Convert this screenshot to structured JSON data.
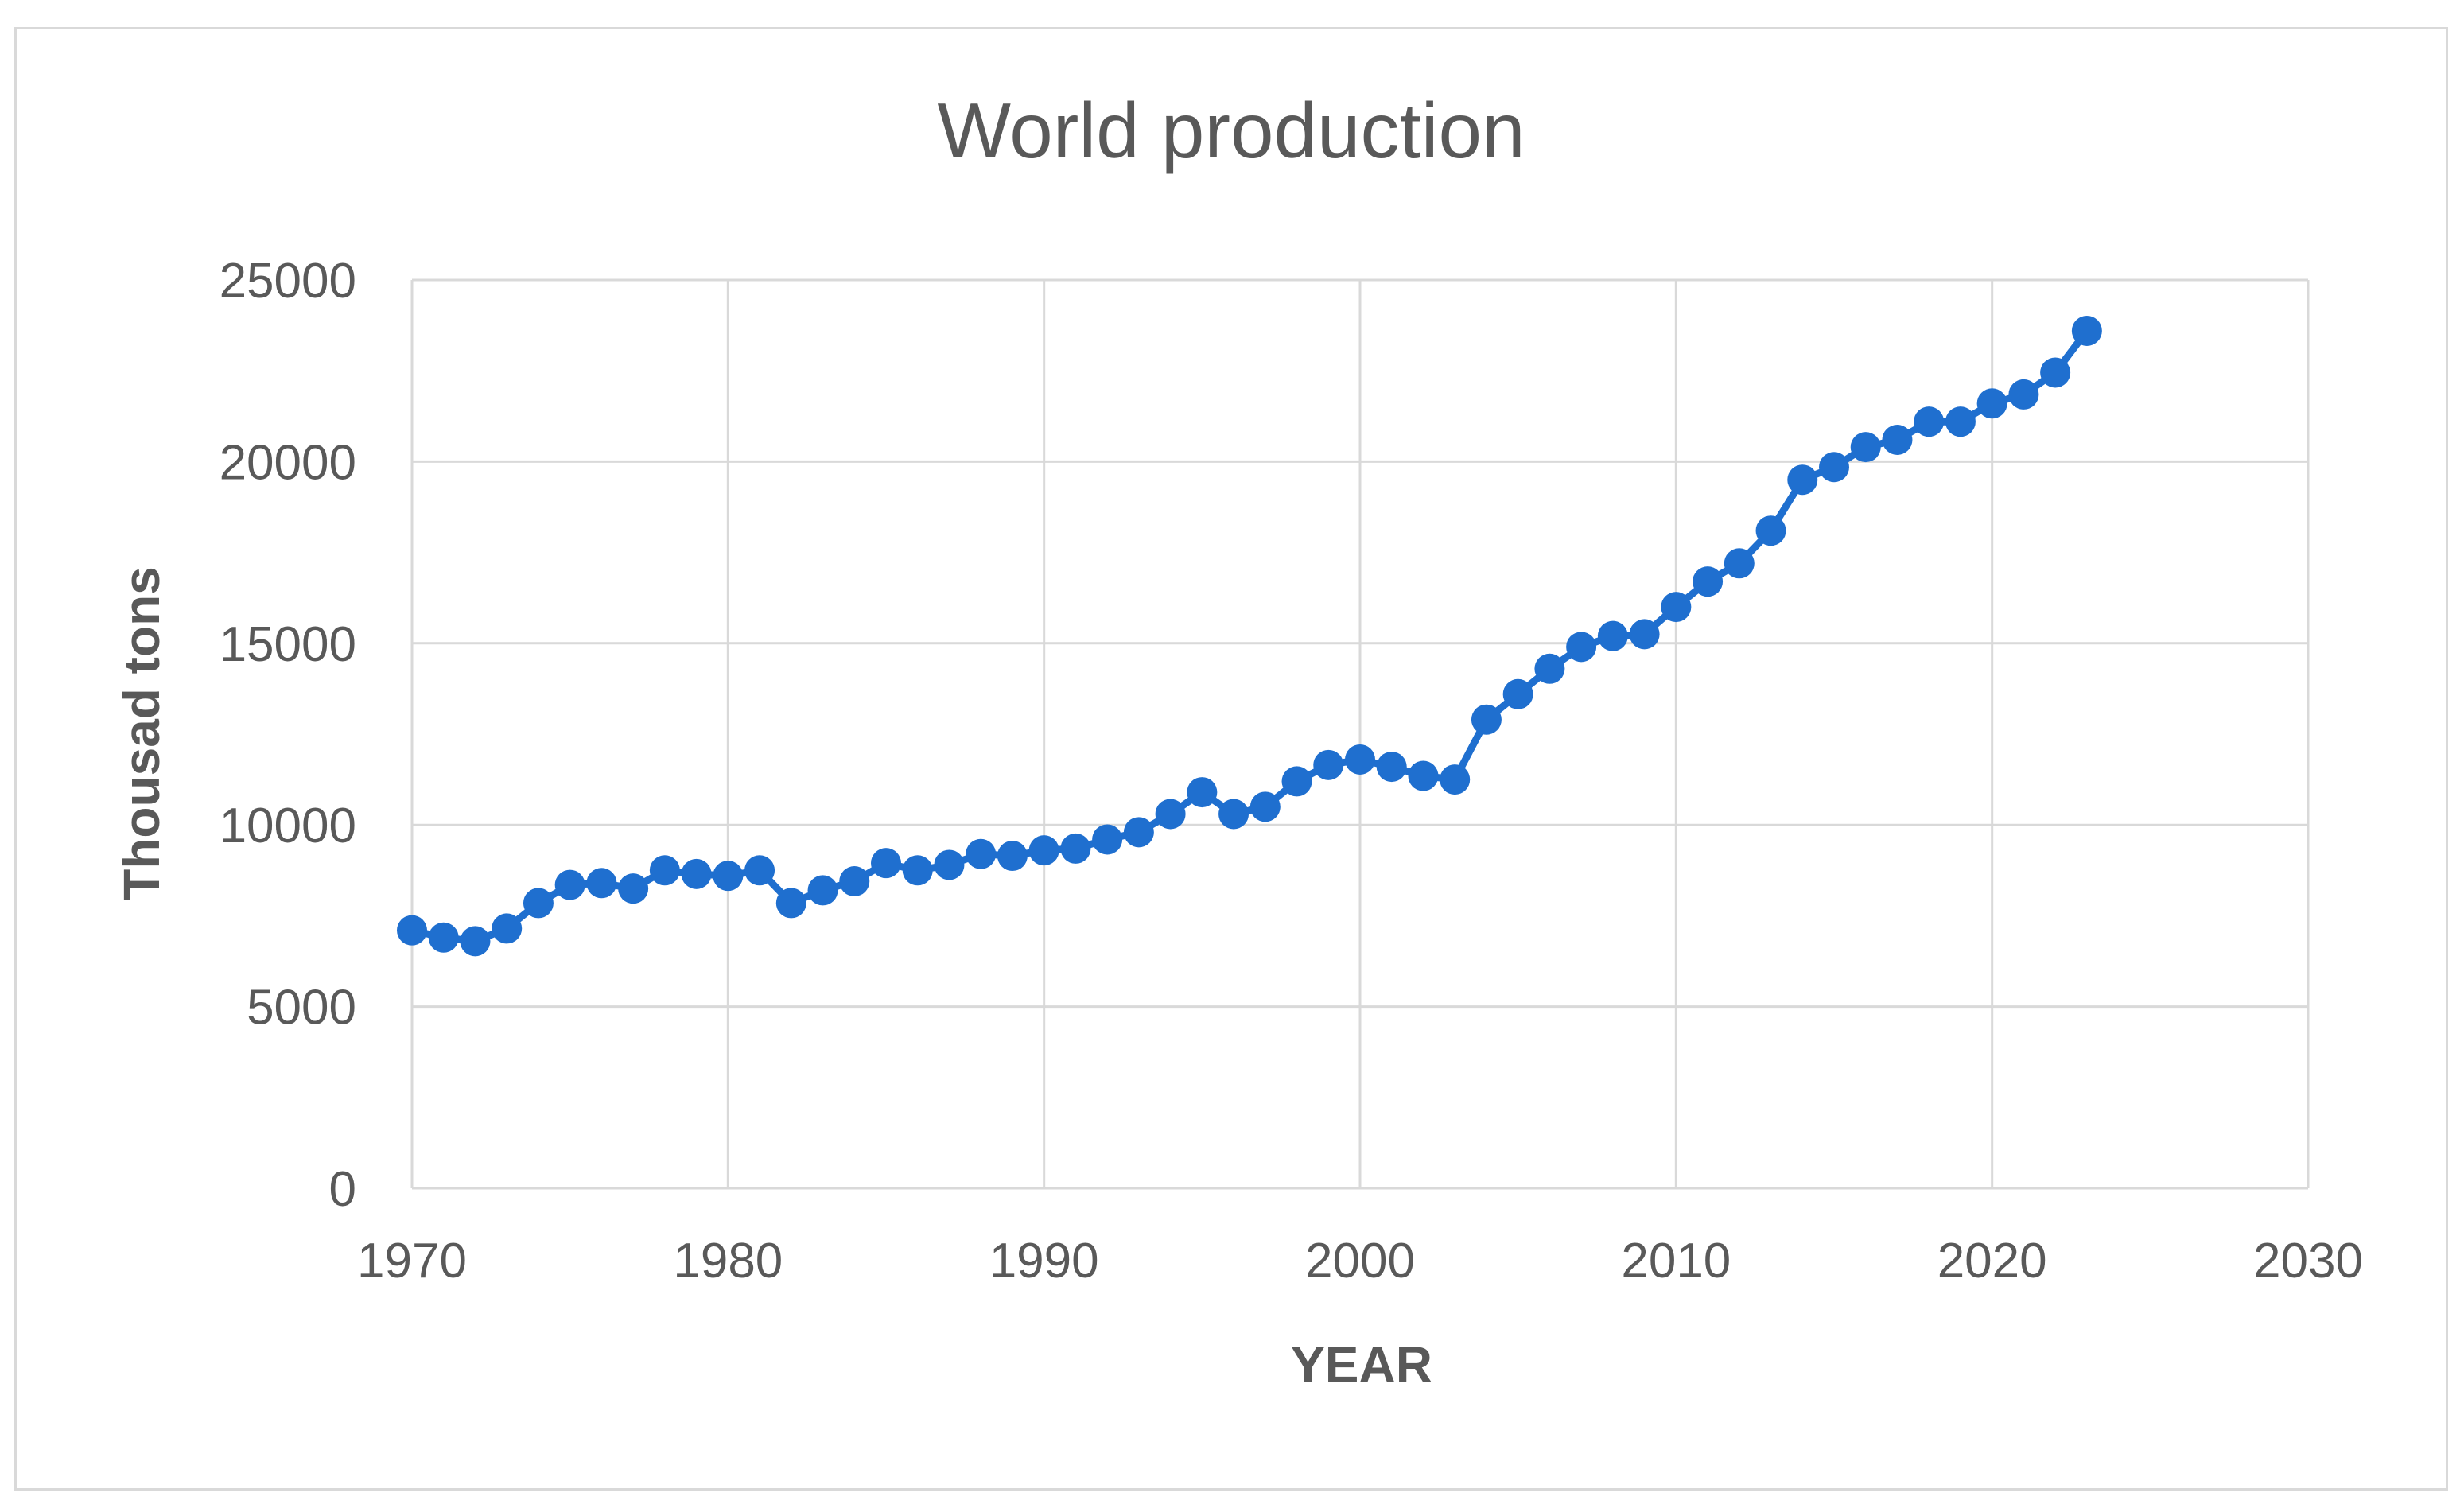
{
  "chart_data": {
    "type": "line",
    "title": "World production",
    "xlabel": "YEAR",
    "ylabel": "Thousad tons",
    "xlim": [
      1970,
      2030
    ],
    "ylim": [
      0,
      25000
    ],
    "xticks": [
      1970,
      1980,
      1990,
      2000,
      2010,
      2020,
      2030
    ],
    "yticks": [
      0,
      5000,
      10000,
      15000,
      20000,
      25000
    ],
    "grid": true,
    "legend": "none",
    "colors": {
      "series": "#1f6fcf",
      "grid": "#d9d9d9",
      "text": "#595959"
    },
    "series": [
      {
        "name": "World production",
        "x": [
          1970,
          1971,
          1972,
          1973,
          1974,
          1975,
          1976,
          1977,
          1978,
          1979,
          1980,
          1981,
          1982,
          1983,
          1984,
          1985,
          1986,
          1987,
          1988,
          1989,
          1990,
          1991,
          1992,
          1993,
          1994,
          1995,
          1996,
          1997,
          1998,
          1999,
          2000,
          2001,
          2002,
          2003,
          2004,
          2005,
          2006,
          2007,
          2008,
          2009,
          2010,
          2011,
          2012,
          2013,
          2014,
          2015,
          2016,
          2017,
          2018,
          2019,
          2020,
          2021,
          2022,
          2023
        ],
        "y": [
          7100,
          6900,
          6800,
          7150,
          7850,
          8350,
          8400,
          8250,
          8750,
          8650,
          8600,
          8750,
          7850,
          8200,
          8450,
          8950,
          8750,
          8900,
          9200,
          9150,
          9300,
          9350,
          9600,
          9800,
          10300,
          10900,
          10300,
          10500,
          11200,
          11650,
          11800,
          11600,
          11350,
          11250,
          12900,
          13600,
          14300,
          14900,
          15200,
          15250,
          16000,
          16700,
          17200,
          18100,
          19500,
          19850,
          20400,
          20600,
          21100,
          21100,
          21600,
          21850,
          22450,
          23600
        ]
      }
    ]
  }
}
